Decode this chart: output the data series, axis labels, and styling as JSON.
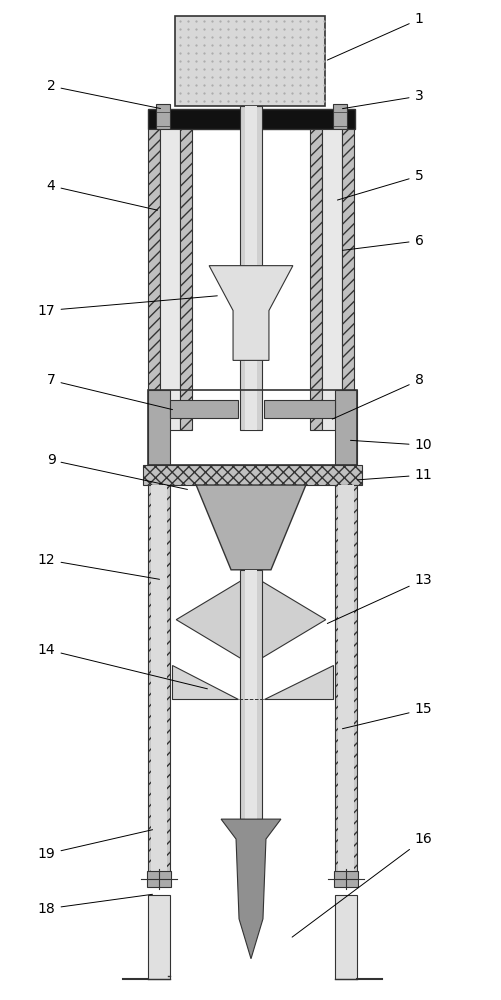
{
  "fig_width": 5.02,
  "fig_height": 10.0,
  "dpi": 100,
  "bg_color": "#ffffff",
  "lc": "#333333",
  "black": "#111111",
  "gray_light": "#d8d8d8",
  "gray_mid": "#aaaaaa",
  "gray_dark": "#888888",
  "gray_hatch": "#c0c0c0",
  "label_fs": 10
}
